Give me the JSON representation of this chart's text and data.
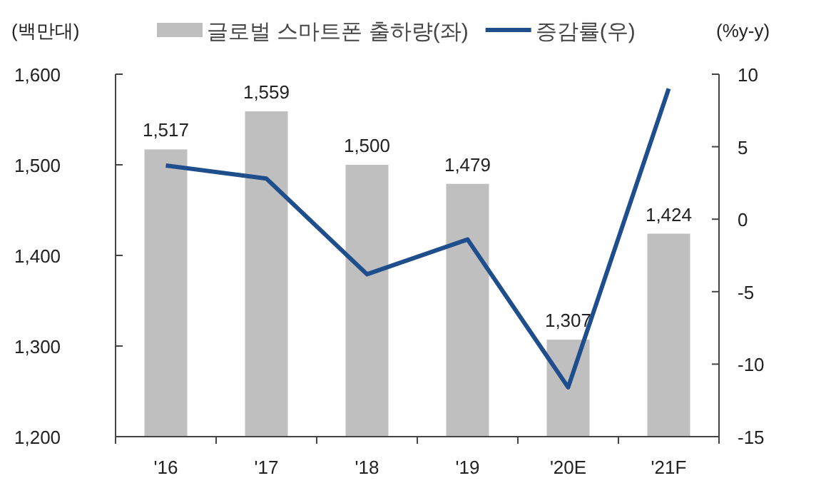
{
  "chart_data": {
    "type": "bar",
    "ylabel": "(백만대)",
    "y2label": "(%y-y)",
    "categories": [
      "'16",
      "'17",
      "'18",
      "'19",
      "'20E",
      "'21F"
    ],
    "series": [
      {
        "name": "글로벌 스마트폰 출하량(좌)",
        "color": "#bfbfbf",
        "values": [
          1517,
          1559,
          1500,
          1479,
          1307,
          1424
        ],
        "value_labels": [
          "1,517",
          "1,559",
          "1,500",
          "1,479",
          "1,307",
          "1,424"
        ]
      },
      {
        "name": "증감률(우)",
        "type": "line",
        "axis": "y2",
        "color": "#1f4e8c",
        "values": [
          3.7,
          2.8,
          -3.8,
          -1.4,
          -11.6,
          9.0
        ]
      }
    ],
    "ylim": [
      1200,
      1600
    ],
    "yticks": [
      {
        "value": 1200,
        "label": "1,200"
      },
      {
        "value": 1300,
        "label": "1,300"
      },
      {
        "value": 1400,
        "label": "1,400"
      },
      {
        "value": 1500,
        "label": "1,500"
      },
      {
        "value": 1600,
        "label": "1,600"
      }
    ],
    "y2lim": [
      -15,
      10
    ],
    "y2ticks": [
      -15,
      -10,
      -5,
      0,
      5,
      10
    ],
    "legend": "top",
    "grid": false
  }
}
